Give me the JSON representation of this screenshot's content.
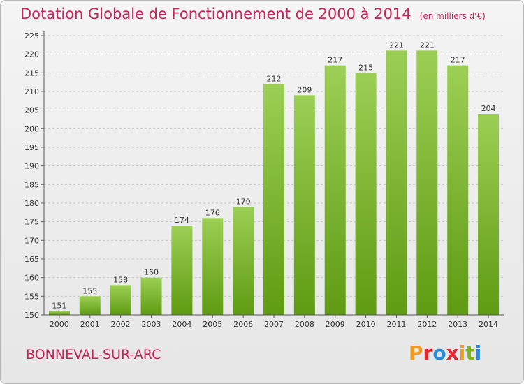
{
  "header": {
    "title": "Dotation Globale de Fonctionnement de 2000 à 2014",
    "subtitle": "(en milliers d'€)"
  },
  "footer": {
    "commune": "BONNEVAL-SUR-ARC",
    "logo_text": "Proxiti",
    "logo_colors": [
      "#f39a1d",
      "#e2262a",
      "#2a8bd8",
      "#e2262a",
      "#f39a1d",
      "#7cb51e",
      "#2a8bd8"
    ]
  },
  "colors": {
    "bar_top": "#9ccf55",
    "bar_bottom": "#5f9b12",
    "grid": "#c7c7c7",
    "axis": "#555555",
    "accent": "#c8245a"
  },
  "chart_data": {
    "type": "bar",
    "title": "Dotation Globale de Fonctionnement de 2000 à 2014",
    "subtitle": "(en milliers d'€)",
    "xlabel": "",
    "ylabel": "",
    "categories": [
      "2000",
      "2001",
      "2002",
      "2003",
      "2004",
      "2005",
      "2006",
      "2007",
      "2008",
      "2009",
      "2010",
      "2011",
      "2012",
      "2013",
      "2014"
    ],
    "values": [
      151,
      155,
      158,
      160,
      174,
      176,
      179,
      212,
      209,
      217,
      215,
      221,
      221,
      217,
      204
    ],
    "ylim": [
      150,
      225
    ],
    "yticks": [
      150,
      155,
      160,
      165,
      170,
      175,
      180,
      185,
      190,
      195,
      200,
      205,
      210,
      215,
      220,
      225
    ],
    "grid": true,
    "legend": "none"
  }
}
